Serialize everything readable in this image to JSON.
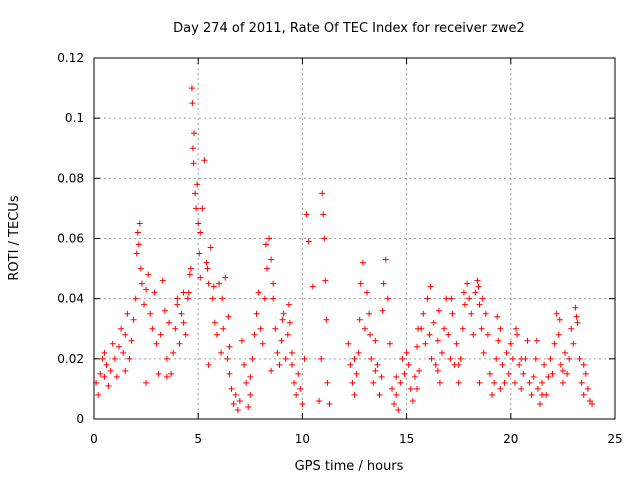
{
  "chart_data": {
    "type": "scatter",
    "title": "Day 274 of 2011, Rate Of TEC Index for receiver zwe2",
    "xlabel": "GPS time / hours",
    "ylabel": "ROTI / TECUs",
    "xlim": [
      0,
      25
    ],
    "ylim": [
      0,
      0.12
    ],
    "x_ticks": [
      0,
      5,
      10,
      15,
      20,
      25
    ],
    "x_tick_labels": [
      "0",
      "5",
      "10",
      "15",
      "20",
      "25"
    ],
    "y_ticks": [
      0,
      0.02,
      0.04,
      0.06,
      0.08,
      0.1,
      0.12
    ],
    "y_tick_labels": [
      "0",
      "0.02",
      "0.04",
      "0.06",
      "0.08",
      "0.1",
      "0.12"
    ],
    "grid": true,
    "legend": "none",
    "marker": "plus",
    "color": "#ff0000",
    "series": [
      {
        "points": [
          [
            0.1,
            0.012
          ],
          [
            0.2,
            0.008
          ],
          [
            0.3,
            0.015
          ],
          [
            0.4,
            0.02
          ],
          [
            0.5,
            0.022
          ],
          [
            0.6,
            0.018
          ],
          [
            0.7,
            0.011
          ],
          [
            0.8,
            0.016
          ],
          [
            0.9,
            0.025
          ],
          [
            1.0,
            0.02
          ],
          [
            1.1,
            0.014
          ],
          [
            1.2,
            0.024
          ],
          [
            1.3,
            0.03
          ],
          [
            1.4,
            0.022
          ],
          [
            1.5,
            0.028
          ],
          [
            1.6,
            0.035
          ],
          [
            1.7,
            0.02
          ],
          [
            1.8,
            0.026
          ],
          [
            1.9,
            0.033
          ],
          [
            2.0,
            0.04
          ],
          [
            2.05,
            0.055
          ],
          [
            2.1,
            0.062
          ],
          [
            2.15,
            0.058
          ],
          [
            2.2,
            0.065
          ],
          [
            2.25,
            0.05
          ],
          [
            2.3,
            0.045
          ],
          [
            2.4,
            0.038
          ],
          [
            2.5,
            0.043
          ],
          [
            2.6,
            0.048
          ],
          [
            2.7,
            0.035
          ],
          [
            2.8,
            0.03
          ],
          [
            2.9,
            0.042
          ],
          [
            3.0,
            0.025
          ],
          [
            3.1,
            0.015
          ],
          [
            3.2,
            0.028
          ],
          [
            3.3,
            0.046
          ],
          [
            3.4,
            0.036
          ],
          [
            3.5,
            0.02
          ],
          [
            3.6,
            0.032
          ],
          [
            3.7,
            0.015
          ],
          [
            3.8,
            0.022
          ],
          [
            3.9,
            0.03
          ],
          [
            4.0,
            0.038
          ],
          [
            4.1,
            0.025
          ],
          [
            4.2,
            0.035
          ],
          [
            4.3,
            0.042
          ],
          [
            4.4,
            0.028
          ],
          [
            4.5,
            0.04
          ],
          [
            4.6,
            0.048
          ],
          [
            4.65,
            0.05
          ],
          [
            4.7,
            0.11
          ],
          [
            4.72,
            0.105
          ],
          [
            4.75,
            0.09
          ],
          [
            4.78,
            0.085
          ],
          [
            4.8,
            0.095
          ],
          [
            4.85,
            0.075
          ],
          [
            4.9,
            0.07
          ],
          [
            4.95,
            0.078
          ],
          [
            5.0,
            0.065
          ],
          [
            5.05,
            0.055
          ],
          [
            5.1,
            0.062
          ],
          [
            5.2,
            0.07
          ],
          [
            5.3,
            0.086
          ],
          [
            5.4,
            0.052
          ],
          [
            5.5,
            0.045
          ],
          [
            5.6,
            0.057
          ],
          [
            5.7,
            0.04
          ],
          [
            5.8,
            0.032
          ],
          [
            5.9,
            0.028
          ],
          [
            6.0,
            0.045
          ],
          [
            6.1,
            0.022
          ],
          [
            6.2,
            0.03
          ],
          [
            6.3,
            0.047
          ],
          [
            6.4,
            0.02
          ],
          [
            6.5,
            0.015
          ],
          [
            6.6,
            0.01
          ],
          [
            6.7,
            0.005
          ],
          [
            6.8,
            0.008
          ],
          [
            6.9,
            0.003
          ],
          [
            7.0,
            0.006
          ],
          [
            7.1,
            0.026
          ],
          [
            7.2,
            0.018
          ],
          [
            7.3,
            0.012
          ],
          [
            7.4,
            0.004
          ],
          [
            7.5,
            0.008
          ],
          [
            7.6,
            0.02
          ],
          [
            7.7,
            0.028
          ],
          [
            7.8,
            0.035
          ],
          [
            7.9,
            0.042
          ],
          [
            8.0,
            0.03
          ],
          [
            8.1,
            0.025
          ],
          [
            8.2,
            0.04
          ],
          [
            8.3,
            0.05
          ],
          [
            8.4,
            0.06
          ],
          [
            8.5,
            0.053
          ],
          [
            8.6,
            0.045
          ],
          [
            8.7,
            0.03
          ],
          [
            8.8,
            0.022
          ],
          [
            8.9,
            0.018
          ],
          [
            9.0,
            0.026
          ],
          [
            9.1,
            0.035
          ],
          [
            9.2,
            0.02
          ],
          [
            9.3,
            0.028
          ],
          [
            9.4,
            0.032
          ],
          [
            9.5,
            0.022
          ],
          [
            9.6,
            0.012
          ],
          [
            9.7,
            0.008
          ],
          [
            9.8,
            0.015
          ],
          [
            9.9,
            0.01
          ],
          [
            10.0,
            0.005
          ],
          [
            10.1,
            0.02
          ],
          [
            10.2,
            0.068
          ],
          [
            10.3,
            0.059
          ],
          [
            10.5,
            0.044
          ],
          [
            10.8,
            0.006
          ],
          [
            10.9,
            0.02
          ],
          [
            10.95,
            0.075
          ],
          [
            11.0,
            0.068
          ],
          [
            11.05,
            0.06
          ],
          [
            11.1,
            0.046
          ],
          [
            11.15,
            0.033
          ],
          [
            11.2,
            0.012
          ],
          [
            11.3,
            0.005
          ],
          [
            12.2,
            0.025
          ],
          [
            12.3,
            0.018
          ],
          [
            12.4,
            0.012
          ],
          [
            12.5,
            0.008
          ],
          [
            12.6,
            0.015
          ],
          [
            12.7,
            0.022
          ],
          [
            12.8,
            0.045
          ],
          [
            12.9,
            0.052
          ],
          [
            13.0,
            0.03
          ],
          [
            13.1,
            0.042
          ],
          [
            13.2,
            0.035
          ],
          [
            13.3,
            0.02
          ],
          [
            13.4,
            0.012
          ],
          [
            13.5,
            0.026
          ],
          [
            13.6,
            0.018
          ],
          [
            13.7,
            0.008
          ],
          [
            13.8,
            0.014
          ],
          [
            13.9,
            0.045
          ],
          [
            14.0,
            0.053
          ],
          [
            14.1,
            0.04
          ],
          [
            14.2,
            0.025
          ],
          [
            14.3,
            0.01
          ],
          [
            14.4,
            0.005
          ],
          [
            14.5,
            0.008
          ],
          [
            14.6,
            0.003
          ],
          [
            14.7,
            0.012
          ],
          [
            14.8,
            0.02
          ],
          [
            14.9,
            0.015
          ],
          [
            15.0,
            0.022
          ],
          [
            15.1,
            0.018
          ],
          [
            15.2,
            0.01
          ],
          [
            15.3,
            0.006
          ],
          [
            15.4,
            0.014
          ],
          [
            15.5,
            0.024
          ],
          [
            15.6,
            0.016
          ],
          [
            15.7,
            0.03
          ],
          [
            15.8,
            0.035
          ],
          [
            15.9,
            0.025
          ],
          [
            16.0,
            0.04
          ],
          [
            16.1,
            0.028
          ],
          [
            16.2,
            0.02
          ],
          [
            16.3,
            0.032
          ],
          [
            16.4,
            0.018
          ],
          [
            16.5,
            0.026
          ],
          [
            16.6,
            0.012
          ],
          [
            16.7,
            0.022
          ],
          [
            16.8,
            0.03
          ],
          [
            16.9,
            0.04
          ],
          [
            17.0,
            0.028
          ],
          [
            17.1,
            0.02
          ],
          [
            17.2,
            0.035
          ],
          [
            17.3,
            0.018
          ],
          [
            17.4,
            0.025
          ],
          [
            17.5,
            0.012
          ],
          [
            17.6,
            0.02
          ],
          [
            17.7,
            0.03
          ],
          [
            17.8,
            0.038
          ],
          [
            17.9,
            0.045
          ],
          [
            18.0,
            0.04
          ],
          [
            18.1,
            0.035
          ],
          [
            18.2,
            0.028
          ],
          [
            18.3,
            0.042
          ],
          [
            18.4,
            0.046
          ],
          [
            18.5,
            0.038
          ],
          [
            18.6,
            0.03
          ],
          [
            18.7,
            0.022
          ],
          [
            18.8,
            0.035
          ],
          [
            18.9,
            0.028
          ],
          [
            19.0,
            0.015
          ],
          [
            19.1,
            0.008
          ],
          [
            19.2,
            0.012
          ],
          [
            19.3,
            0.02
          ],
          [
            19.4,
            0.026
          ],
          [
            19.5,
            0.03
          ],
          [
            19.6,
            0.018
          ],
          [
            19.7,
            0.012
          ],
          [
            19.8,
            0.022
          ],
          [
            19.9,
            0.015
          ],
          [
            20.0,
            0.025
          ],
          [
            20.1,
            0.02
          ],
          [
            20.2,
            0.012
          ],
          [
            20.3,
            0.028
          ],
          [
            20.4,
            0.018
          ],
          [
            20.5,
            0.01
          ],
          [
            20.6,
            0.015
          ],
          [
            20.7,
            0.02
          ],
          [
            20.8,
            0.026
          ],
          [
            20.9,
            0.012
          ],
          [
            21.0,
            0.008
          ],
          [
            21.1,
            0.014
          ],
          [
            21.2,
            0.02
          ],
          [
            21.3,
            0.01
          ],
          [
            21.4,
            0.005
          ],
          [
            21.5,
            0.012
          ],
          [
            21.6,
            0.018
          ],
          [
            21.7,
            0.008
          ],
          [
            21.8,
            0.014
          ],
          [
            21.9,
            0.02
          ],
          [
            22.0,
            0.015
          ],
          [
            22.1,
            0.025
          ],
          [
            22.2,
            0.035
          ],
          [
            22.3,
            0.028
          ],
          [
            22.4,
            0.018
          ],
          [
            22.5,
            0.012
          ],
          [
            22.6,
            0.022
          ],
          [
            22.7,
            0.015
          ],
          [
            22.8,
            0.02
          ],
          [
            22.9,
            0.03
          ],
          [
            23.0,
            0.025
          ],
          [
            23.1,
            0.037
          ],
          [
            23.2,
            0.032
          ],
          [
            23.3,
            0.02
          ],
          [
            23.4,
            0.012
          ],
          [
            23.5,
            0.008
          ],
          [
            23.6,
            0.015
          ],
          [
            23.7,
            0.01
          ],
          [
            23.8,
            0.006
          ],
          [
            23.9,
            0.005
          ],
          [
            4.0,
            0.04
          ],
          [
            4.3,
            0.032
          ],
          [
            4.55,
            0.042
          ],
          [
            5.1,
            0.047
          ],
          [
            5.45,
            0.05
          ],
          [
            5.75,
            0.044
          ],
          [
            6.15,
            0.04
          ],
          [
            6.45,
            0.034
          ],
          [
            8.25,
            0.058
          ],
          [
            8.6,
            0.04
          ],
          [
            9.05,
            0.033
          ],
          [
            9.35,
            0.038
          ],
          [
            12.75,
            0.033
          ],
          [
            13.25,
            0.028
          ],
          [
            13.85,
            0.036
          ],
          [
            15.55,
            0.03
          ],
          [
            16.15,
            0.044
          ],
          [
            16.55,
            0.036
          ],
          [
            17.15,
            0.04
          ],
          [
            17.75,
            0.042
          ],
          [
            18.45,
            0.044
          ],
          [
            18.65,
            0.04
          ],
          [
            19.35,
            0.034
          ],
          [
            20.25,
            0.03
          ],
          [
            21.25,
            0.026
          ],
          [
            22.35,
            0.033
          ],
          [
            23.15,
            0.034
          ],
          [
            0.5,
            0.014
          ],
          [
            1.5,
            0.016
          ],
          [
            2.5,
            0.012
          ],
          [
            3.5,
            0.014
          ],
          [
            5.5,
            0.018
          ],
          [
            6.5,
            0.024
          ],
          [
            7.5,
            0.014
          ],
          [
            8.5,
            0.016
          ],
          [
            9.5,
            0.018
          ],
          [
            12.5,
            0.02
          ],
          [
            13.5,
            0.016
          ],
          [
            14.5,
            0.014
          ],
          [
            15.5,
            0.01
          ],
          [
            16.5,
            0.016
          ],
          [
            17.5,
            0.018
          ],
          [
            18.5,
            0.012
          ],
          [
            19.5,
            0.01
          ],
          [
            20.5,
            0.02
          ],
          [
            21.5,
            0.008
          ],
          [
            22.5,
            0.016
          ],
          [
            23.5,
            0.018
          ]
        ]
      }
    ]
  }
}
